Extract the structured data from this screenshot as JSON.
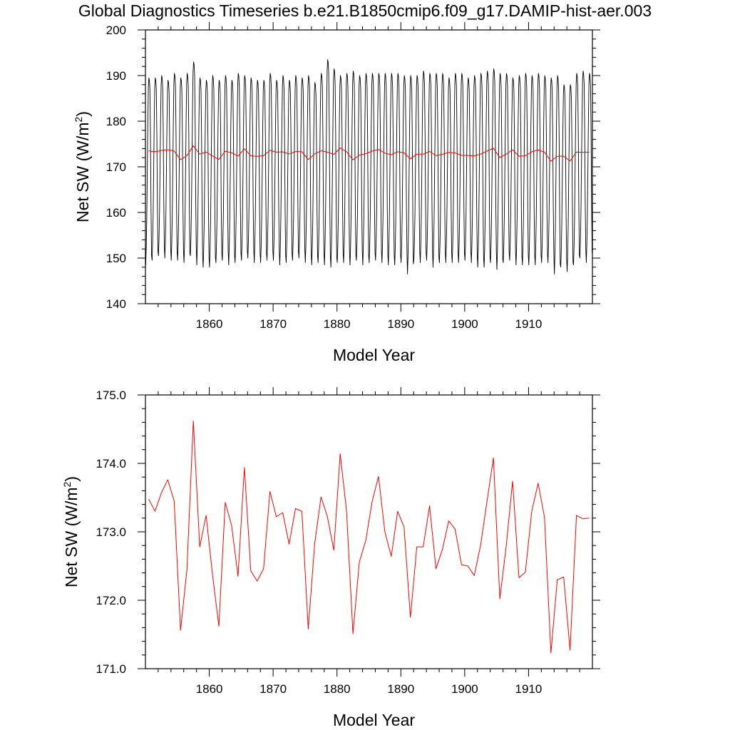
{
  "title": "Global Diagnostics Timeseries b.e21.B1850cmip6.f09_g17.DAMIP-hist-aer.003",
  "chart_data": [
    {
      "type": "line",
      "xlabel": "Model Year",
      "ylabel_main": "Net SW (W/m",
      "ylabel_sup": "2",
      "ylabel_close": ")",
      "xlim": [
        1850,
        1920
      ],
      "ylim": [
        140,
        200
      ],
      "xticks": [
        "1860",
        "1870",
        "1880",
        "1890",
        "1900",
        "1910"
      ],
      "yticks": [
        "140",
        "150",
        "160",
        "170",
        "180",
        "190",
        "200"
      ],
      "grid": false,
      "series": [
        {
          "color": "#000000",
          "kind": "monthly",
          "month_cycle_offset": [
            -22.5,
            -18.9,
            -12.8,
            -3.0,
            7.0,
            14.5,
            16.5,
            15.9,
            13.8,
            4.0,
            -11.0,
            -20.5
          ],
          "year_min": [
            148.5,
            149.5,
            150.5,
            150.0,
            149.5,
            149.5,
            149.0,
            150.5,
            148.5,
            148.0,
            148.0,
            149.0,
            149.5,
            148.5,
            149.0,
            149.5,
            150.0,
            149.0,
            149.0,
            149.5,
            149.5,
            148.5,
            149.0,
            149.5,
            150.0,
            149.0,
            148.5,
            149.0,
            148.5,
            148.0,
            149.0,
            149.0,
            148.5,
            149.5,
            148.5,
            149.0,
            149.5,
            149.0,
            148.5,
            148.5,
            149.0,
            146.5,
            149.5,
            149.0,
            149.5,
            148.0,
            149.0,
            149.0,
            149.0,
            149.0,
            149.5,
            149.0,
            148.0,
            148.0,
            149.0,
            147.5,
            149.0,
            149.5,
            148.5,
            148.5,
            148.5,
            148.5,
            149.0,
            149.0,
            146.5,
            148.0,
            147.0,
            148.5,
            150.0,
            149.0
          ],
          "year_max": [
            189.5,
            189.5,
            190.0,
            189.0,
            190.5,
            189.5,
            190.5,
            193.0,
            189.5,
            189.0,
            190.0,
            189.0,
            190.0,
            189.0,
            190.5,
            190.0,
            189.5,
            189.0,
            189.0,
            190.5,
            189.0,
            190.0,
            189.0,
            190.0,
            189.5,
            190.0,
            188.5,
            190.5,
            193.5,
            191.5,
            190.0,
            190.5,
            191.0,
            190.0,
            190.5,
            190.5,
            190.5,
            190.5,
            190.5,
            190.5,
            190.0,
            190.0,
            190.0,
            191.0,
            190.5,
            190.5,
            190.5,
            189.5,
            190.5,
            190.5,
            189.5,
            190.0,
            190.5,
            191.0,
            191.5,
            190.5,
            190.5,
            189.5,
            190.0,
            190.5,
            190.0,
            190.5,
            190.0,
            189.5,
            190.0,
            188.0,
            188.0,
            190.5,
            191.0,
            190.5
          ]
        },
        {
          "color": "#ff0000",
          "kind": "annual",
          "values": [
            173.48,
            173.3,
            173.57,
            173.76,
            173.45,
            171.56,
            172.45,
            174.62,
            172.78,
            173.24,
            172.38,
            171.62,
            173.43,
            173.09,
            172.35,
            173.94,
            172.43,
            172.28,
            172.46,
            173.59,
            173.22,
            173.28,
            172.82,
            173.34,
            173.3,
            171.58,
            172.82,
            173.51,
            173.22,
            172.73,
            174.14,
            173.3,
            171.51,
            172.56,
            172.87,
            173.44,
            173.81,
            173.0,
            172.64,
            173.3,
            173.07,
            171.75,
            172.78,
            172.78,
            173.38,
            172.46,
            172.74,
            173.16,
            173.04,
            172.52,
            172.5,
            172.36,
            172.81,
            173.45,
            174.08,
            172.02,
            172.79,
            173.74,
            172.33,
            172.41,
            173.3,
            173.71,
            173.21,
            171.23,
            172.3,
            172.34,
            171.27,
            173.24,
            173.19,
            173.2
          ]
        }
      ]
    },
    {
      "type": "line",
      "xlabel": "Model Year",
      "ylabel_main": "Net SW (W/m",
      "ylabel_sup": "2",
      "ylabel_close": ")",
      "xlim": [
        1850,
        1920
      ],
      "ylim": [
        171.0,
        175.0
      ],
      "xticks": [
        "1860",
        "1870",
        "1880",
        "1890",
        "1900",
        "1910"
      ],
      "yticks": [
        "171.0",
        "172.0",
        "173.0",
        "174.0",
        "175.0"
      ],
      "grid": false,
      "series": [
        {
          "color": "#ff0000",
          "kind": "annual",
          "values": [
            173.48,
            173.3,
            173.57,
            173.76,
            173.45,
            171.56,
            172.45,
            174.62,
            172.78,
            173.24,
            172.38,
            171.62,
            173.43,
            173.09,
            172.35,
            173.94,
            172.43,
            172.28,
            172.46,
            173.59,
            173.22,
            173.28,
            172.82,
            173.34,
            173.3,
            171.58,
            172.82,
            173.51,
            173.22,
            172.73,
            174.14,
            173.3,
            171.51,
            172.56,
            172.87,
            173.44,
            173.81,
            173.0,
            172.64,
            173.3,
            173.07,
            171.75,
            172.78,
            172.78,
            173.38,
            172.46,
            172.74,
            173.16,
            173.04,
            172.52,
            172.5,
            172.36,
            172.81,
            173.45,
            174.08,
            172.02,
            172.79,
            173.74,
            172.33,
            172.41,
            173.3,
            173.71,
            173.21,
            171.23,
            172.3,
            172.34,
            171.27,
            173.24,
            173.19,
            173.2
          ]
        }
      ]
    }
  ]
}
